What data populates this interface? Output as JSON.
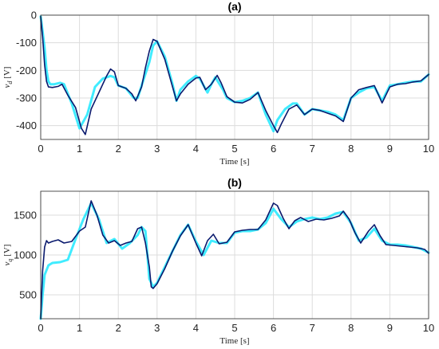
{
  "chart_data": [
    {
      "type": "line",
      "title": "(a)",
      "xlabel": "Time   [s]",
      "ylabel": "v_d [V]",
      "ylabel_main": "v",
      "ylabel_sub": "d",
      "ylabel_unit": " [V]",
      "xlim": [
        0,
        10
      ],
      "ylim": [
        -450,
        0
      ],
      "xticks": [
        0,
        1,
        2,
        3,
        4,
        5,
        6,
        7,
        8,
        9,
        10
      ],
      "yticks": [
        0,
        -100,
        -200,
        -300,
        -400
      ],
      "grid": true,
      "series": [
        {
          "color": "#00e5ff",
          "x": [
            0,
            0.05,
            0.1,
            0.15,
            0.2,
            0.25,
            0.35,
            0.5,
            0.6,
            0.8,
            1.0,
            1.2,
            1.4,
            1.6,
            1.8,
            1.9,
            2.0,
            2.2,
            2.4,
            2.5,
            2.6,
            2.8,
            2.9,
            3.0,
            3.2,
            3.4,
            3.5,
            3.6,
            3.8,
            4.0,
            4.1,
            4.3,
            4.4,
            4.5,
            4.7,
            4.8,
            5.0,
            5.2,
            5.4,
            5.6,
            5.8,
            6.0,
            6.1,
            6.3,
            6.5,
            6.6,
            6.8,
            7.0,
            7.2,
            7.4,
            7.6,
            7.8,
            8.0,
            8.2,
            8.4,
            8.6,
            8.8,
            9.0,
            9.2,
            9.4,
            9.6,
            9.8,
            10.0
          ],
          "y": [
            -5,
            -60,
            -120,
            -200,
            -240,
            -250,
            -250,
            -245,
            -250,
            -320,
            -410,
            -360,
            -260,
            -230,
            -220,
            -225,
            -255,
            -265,
            -300,
            -300,
            -255,
            -170,
            -110,
            -95,
            -150,
            -250,
            -310,
            -270,
            -240,
            -220,
            -230,
            -280,
            -250,
            -225,
            -270,
            -300,
            -315,
            -310,
            -300,
            -280,
            -360,
            -420,
            -380,
            -340,
            -320,
            -320,
            -360,
            -340,
            -345,
            -350,
            -360,
            -380,
            -300,
            -280,
            -265,
            -260,
            -310,
            -255,
            -250,
            -245,
            -240,
            -240,
            -215
          ]
        },
        {
          "color": "#0a1a6e",
          "x": [
            0,
            0.05,
            0.1,
            0.15,
            0.2,
            0.3,
            0.45,
            0.55,
            0.7,
            0.9,
            1.05,
            1.15,
            1.3,
            1.5,
            1.7,
            1.8,
            1.9,
            2.0,
            2.2,
            2.35,
            2.45,
            2.6,
            2.7,
            2.8,
            2.9,
            3.0,
            3.2,
            3.4,
            3.5,
            3.6,
            3.8,
            4.0,
            4.1,
            4.25,
            4.4,
            4.55,
            4.65,
            4.8,
            5.0,
            5.2,
            5.4,
            5.6,
            5.8,
            6.0,
            6.1,
            6.2,
            6.4,
            6.6,
            6.8,
            7.0,
            7.2,
            7.4,
            7.6,
            7.8,
            8.0,
            8.2,
            8.4,
            8.6,
            8.8,
            9.0,
            9.2,
            9.4,
            9.6,
            9.8,
            10.0
          ],
          "y": [
            -5,
            -80,
            -180,
            -240,
            -260,
            -262,
            -258,
            -250,
            -290,
            -335,
            -410,
            -432,
            -340,
            -280,
            -220,
            -195,
            -205,
            -255,
            -265,
            -285,
            -310,
            -260,
            -190,
            -130,
            -88,
            -95,
            -160,
            -260,
            -310,
            -285,
            -250,
            -228,
            -225,
            -270,
            -250,
            -218,
            -245,
            -295,
            -315,
            -318,
            -305,
            -280,
            -345,
            -400,
            -425,
            -395,
            -340,
            -325,
            -360,
            -340,
            -345,
            -355,
            -365,
            -385,
            -300,
            -270,
            -262,
            -255,
            -318,
            -260,
            -250,
            -248,
            -242,
            -238,
            -215
          ]
        }
      ]
    },
    {
      "type": "line",
      "title": "(b)",
      "xlabel": "Time   [s]",
      "ylabel": "v_q [V]",
      "ylabel_main": "v",
      "ylabel_sub": "q",
      "ylabel_unit": " [V]",
      "xlim": [
        0,
        10
      ],
      "ylim": [
        200,
        1800
      ],
      "xticks": [
        0,
        1,
        2,
        3,
        4,
        5,
        6,
        7,
        8,
        9,
        10
      ],
      "yticks": [
        500,
        1000,
        1500
      ],
      "grid": true,
      "series": [
        {
          "color": "#00e5ff",
          "x": [
            0,
            0.05,
            0.1,
            0.2,
            0.3,
            0.5,
            0.7,
            0.9,
            1.1,
            1.3,
            1.5,
            1.7,
            1.9,
            2.1,
            2.3,
            2.5,
            2.6,
            2.7,
            2.8,
            2.9,
            3.0,
            3.2,
            3.4,
            3.6,
            3.8,
            4.0,
            4.2,
            4.4,
            4.6,
            4.8,
            5.0,
            5.2,
            5.4,
            5.6,
            5.8,
            6.0,
            6.2,
            6.4,
            6.6,
            6.8,
            7.0,
            7.2,
            7.4,
            7.6,
            7.8,
            8.0,
            8.2,
            8.4,
            8.6,
            8.8,
            9.0,
            9.2,
            9.4,
            9.6,
            9.8,
            10.0
          ],
          "y": [
            200,
            500,
            750,
            870,
            900,
            910,
            940,
            1200,
            1450,
            1650,
            1450,
            1150,
            1200,
            1080,
            1150,
            1250,
            1350,
            1300,
            700,
            600,
            650,
            850,
            1050,
            1250,
            1380,
            1170,
            1000,
            1180,
            1150,
            1150,
            1280,
            1300,
            1300,
            1320,
            1400,
            1580,
            1450,
            1350,
            1420,
            1450,
            1470,
            1450,
            1470,
            1520,
            1540,
            1400,
            1180,
            1220,
            1330,
            1180,
            1130,
            1130,
            1120,
            1100,
            1080,
            1030
          ]
        },
        {
          "color": "#0a1a6e",
          "x": [
            0,
            0.05,
            0.1,
            0.15,
            0.2,
            0.3,
            0.45,
            0.6,
            0.8,
            1.0,
            1.15,
            1.3,
            1.45,
            1.6,
            1.75,
            1.9,
            2.05,
            2.2,
            2.35,
            2.5,
            2.6,
            2.65,
            2.7,
            2.8,
            2.85,
            2.9,
            3.0,
            3.2,
            3.4,
            3.6,
            3.8,
            4.0,
            4.15,
            4.3,
            4.45,
            4.6,
            4.8,
            5.0,
            5.2,
            5.4,
            5.6,
            5.8,
            6.0,
            6.1,
            6.25,
            6.4,
            6.55,
            6.7,
            6.9,
            7.1,
            7.3,
            7.5,
            7.7,
            7.8,
            7.95,
            8.1,
            8.25,
            8.45,
            8.6,
            8.75,
            8.9,
            9.1,
            9.3,
            9.5,
            9.7,
            9.9,
            10.0
          ],
          "y": [
            200,
            800,
            1100,
            1180,
            1150,
            1170,
            1190,
            1150,
            1170,
            1300,
            1350,
            1680,
            1500,
            1250,
            1150,
            1180,
            1120,
            1150,
            1170,
            1330,
            1350,
            1250,
            1150,
            850,
            600,
            580,
            640,
            830,
            1050,
            1240,
            1380,
            1150,
            990,
            1180,
            1260,
            1140,
            1160,
            1290,
            1310,
            1320,
            1320,
            1440,
            1650,
            1620,
            1460,
            1330,
            1430,
            1470,
            1420,
            1450,
            1440,
            1460,
            1490,
            1550,
            1450,
            1280,
            1150,
            1300,
            1380,
            1240,
            1130,
            1120,
            1110,
            1100,
            1090,
            1070,
            1020
          ]
        }
      ]
    }
  ]
}
